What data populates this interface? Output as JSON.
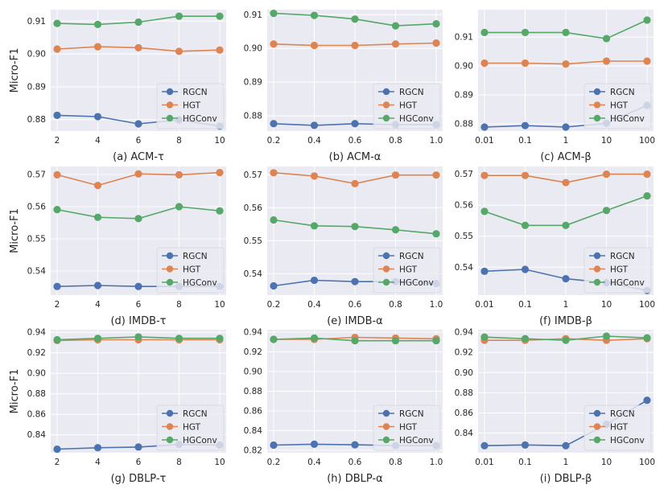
{
  "figure": {
    "ylabel": "Micro-F1",
    "series_colors": {
      "RGCN": "#4c72b0",
      "HGT": "#dd8452",
      "HGConv": "#55a868"
    },
    "panel_background": "#eaeaf2",
    "grid_color": "#ffffff"
  },
  "chart_data": [
    {
      "type": "line",
      "title": "(a) ACM-τ",
      "ylabel": "Micro-F1",
      "categories": [
        "2",
        "4",
        "6",
        "8",
        "10"
      ],
      "yticks": [
        "0.88",
        "0.89",
        "0.90",
        "0.91"
      ],
      "ytick_values": [
        0.88,
        0.89,
        0.9,
        0.91
      ],
      "ylim": [
        0.8765,
        0.9135
      ],
      "legend": "lower-right",
      "series": [
        {
          "name": "RGCN",
          "values": [
            0.8813,
            0.8809,
            0.8787,
            0.8799,
            0.878
          ]
        },
        {
          "name": "HGT",
          "values": [
            0.9015,
            0.9022,
            0.9019,
            0.9008,
            0.9012
          ]
        },
        {
          "name": "HGConv",
          "values": [
            0.9093,
            0.909,
            0.9097,
            0.9115,
            0.9115
          ]
        }
      ]
    },
    {
      "type": "line",
      "title": "(b) ACM-α",
      "ylabel": "",
      "categories": [
        "0.2",
        "0.4",
        "0.6",
        "0.8",
        "1.0"
      ],
      "yticks": [
        "0.88",
        "0.89",
        "0.90",
        "0.91"
      ],
      "ytick_values": [
        0.88,
        0.89,
        0.9,
        0.91
      ],
      "ylim": [
        0.8755,
        0.9115
      ],
      "legend": "lower-right",
      "series": [
        {
          "name": "RGCN",
          "values": [
            0.8777,
            0.8772,
            0.8777,
            0.8774,
            0.8774
          ]
        },
        {
          "name": "HGT",
          "values": [
            0.9013,
            0.9009,
            0.9009,
            0.9013,
            0.9016
          ]
        },
        {
          "name": "HGConv",
          "values": [
            0.9104,
            0.9098,
            0.9087,
            0.9067,
            0.9073
          ]
        }
      ]
    },
    {
      "type": "line",
      "title": "(c) ACM-β",
      "ylabel": "",
      "categories": [
        "0.01",
        "0.1",
        "1",
        "10",
        "100"
      ],
      "yticks": [
        "0.88",
        "0.89",
        "0.90",
        "0.91"
      ],
      "ytick_values": [
        0.88,
        0.89,
        0.9,
        0.91
      ],
      "ylim": [
        0.8775,
        0.9195
      ],
      "legend": "lower-right",
      "series": [
        {
          "name": "RGCN",
          "values": [
            0.8789,
            0.8794,
            0.8789,
            0.8802,
            0.8864
          ]
        },
        {
          "name": "HGT",
          "values": [
            0.901,
            0.901,
            0.9007,
            0.9017,
            0.9017
          ]
        },
        {
          "name": "HGConv",
          "values": [
            0.9116,
            0.9116,
            0.9116,
            0.9095,
            0.9159
          ]
        }
      ]
    },
    {
      "type": "line",
      "title": "(d) IMDB-τ",
      "ylabel": "Micro-F1",
      "categories": [
        "2",
        "4",
        "6",
        "8",
        "10"
      ],
      "yticks": [
        "0.54",
        "0.55",
        "0.56",
        "0.57"
      ],
      "ytick_values": [
        0.54,
        0.55,
        0.56,
        0.57
      ],
      "ylim": [
        0.5325,
        0.5725
      ],
      "legend": "lower-right",
      "series": [
        {
          "name": "RGCN",
          "values": [
            0.5352,
            0.5355,
            0.5352,
            0.5352,
            0.5352
          ]
        },
        {
          "name": "HGT",
          "values": [
            0.5699,
            0.5666,
            0.5702,
            0.5699,
            0.5706
          ]
        },
        {
          "name": "HGConv",
          "values": [
            0.5591,
            0.5567,
            0.5563,
            0.56,
            0.5587
          ]
        }
      ]
    },
    {
      "type": "line",
      "title": "(e) IMDB-α",
      "ylabel": "",
      "categories": [
        "0.2",
        "0.4",
        "0.6",
        "0.8",
        "1.0"
      ],
      "yticks": [
        "0.54",
        "0.55",
        "0.56",
        "0.57"
      ],
      "ytick_values": [
        0.54,
        0.55,
        0.56,
        0.57
      ],
      "ylim": [
        0.5335,
        0.5725
      ],
      "legend": "lower-right",
      "series": [
        {
          "name": "RGCN",
          "values": [
            0.5363,
            0.538,
            0.5376,
            0.5376,
            0.537
          ]
        },
        {
          "name": "HGT",
          "values": [
            0.5706,
            0.5696,
            0.5673,
            0.5699,
            0.5699
          ]
        },
        {
          "name": "HGConv",
          "values": [
            0.5563,
            0.5545,
            0.5543,
            0.5533,
            0.5521
          ]
        }
      ]
    },
    {
      "type": "line",
      "title": "(f) IMDB-β",
      "ylabel": "",
      "categories": [
        "0.01",
        "0.1",
        "1",
        "10",
        "100"
      ],
      "yticks": [
        "0.54",
        "0.55",
        "0.56",
        "0.57"
      ],
      "ytick_values": [
        0.54,
        0.55,
        0.56,
        0.57
      ],
      "ylim": [
        0.531,
        0.5725
      ],
      "legend": "lower-right",
      "series": [
        {
          "name": "RGCN",
          "values": [
            0.5387,
            0.5393,
            0.5363,
            0.535,
            0.5325
          ]
        },
        {
          "name": "HGT",
          "values": [
            0.5696,
            0.5696,
            0.5673,
            0.57,
            0.57
          ]
        },
        {
          "name": "HGConv",
          "values": [
            0.558,
            0.5535,
            0.5535,
            0.5583,
            0.563
          ]
        }
      ]
    },
    {
      "type": "line",
      "title": "(g) DBLP-τ",
      "ylabel": "Micro-F1",
      "categories": [
        "2",
        "4",
        "6",
        "8",
        "10"
      ],
      "yticks": [
        "0.84",
        "0.86",
        "0.88",
        "0.90",
        "0.92",
        "0.94"
      ],
      "ytick_values": [
        0.84,
        0.86,
        0.88,
        0.9,
        0.92,
        0.94
      ],
      "ylim": [
        0.8225,
        0.9425
      ],
      "legend": "lower-right",
      "series": [
        {
          "name": "RGCN",
          "values": [
            0.826,
            0.8274,
            0.8281,
            0.8305,
            0.83
          ]
        },
        {
          "name": "HGT",
          "values": [
            0.932,
            0.9327,
            0.9327,
            0.9327,
            0.9327
          ]
        },
        {
          "name": "HGConv",
          "values": [
            0.9327,
            0.9341,
            0.9355,
            0.9341,
            0.9341
          ]
        }
      ]
    },
    {
      "type": "line",
      "title": "(h) DBLP-α",
      "ylabel": "",
      "categories": [
        "0.2",
        "0.4",
        "0.6",
        "0.8",
        "1.0"
      ],
      "yticks": [
        "0.82",
        "0.84",
        "0.86",
        "0.88",
        "0.90",
        "0.92",
        "0.94"
      ],
      "ytick_values": [
        0.82,
        0.84,
        0.86,
        0.88,
        0.9,
        0.92,
        0.94
      ],
      "ylim": [
        0.8175,
        0.9425
      ],
      "legend": "lower-right",
      "series": [
        {
          "name": "RGCN",
          "values": [
            0.8253,
            0.8262,
            0.8256,
            0.8248,
            0.8248
          ]
        },
        {
          "name": "HGT",
          "values": [
            0.9327,
            0.9327,
            0.9347,
            0.934,
            0.9333
          ]
        },
        {
          "name": "HGConv",
          "values": [
            0.9327,
            0.934,
            0.9313,
            0.9313,
            0.9313
          ]
        }
      ]
    },
    {
      "type": "line",
      "title": "(i) DBLP-β",
      "ylabel": "",
      "categories": [
        "0.01",
        "0.1",
        "1",
        "10",
        "100"
      ],
      "yticks": [
        "0.84",
        "0.86",
        "0.88",
        "0.90",
        "0.92",
        "0.94"
      ],
      "ytick_values": [
        0.84,
        0.86,
        0.88,
        0.9,
        0.92,
        0.94
      ],
      "ylim": [
        0.8205,
        0.9425
      ],
      "legend": "lower-right",
      "series": [
        {
          "name": "RGCN",
          "values": [
            0.8275,
            0.8282,
            0.8275,
            0.8487,
            0.8725
          ]
        },
        {
          "name": "HGT",
          "values": [
            0.932,
            0.932,
            0.9336,
            0.932,
            0.9336
          ]
        },
        {
          "name": "HGConv",
          "values": [
            0.9352,
            0.9336,
            0.932,
            0.9361,
            0.9344
          ]
        }
      ]
    }
  ]
}
